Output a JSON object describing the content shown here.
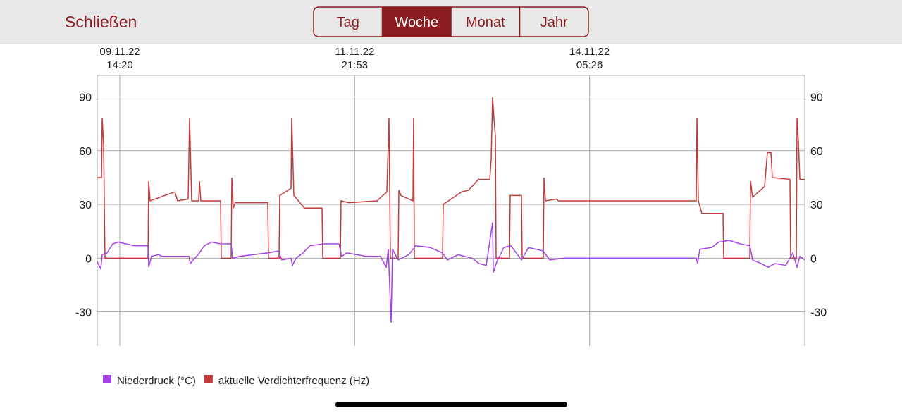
{
  "header": {
    "close": "Schließen",
    "tabs": [
      "Tag",
      "Woche",
      "Monat",
      "Jahr"
    ],
    "selected_tab": 1
  },
  "chart_data": {
    "type": "line",
    "xlim": [
      "2022-11-09T09:00",
      "2022-11-16T08:20"
    ],
    "xticks": [
      {
        "value": "2022-11-09T14:20",
        "label": [
          "09.11.22",
          "14:20"
        ]
      },
      {
        "value": "2022-11-11T21:53",
        "label": [
          "11.11.22",
          "21:53"
        ]
      },
      {
        "value": "2022-11-14T05:26",
        "label": [
          "14.11.22",
          "05:26"
        ]
      }
    ],
    "ylim": [
      -49,
      102
    ],
    "yticks": [
      -30,
      0,
      30,
      60,
      90
    ],
    "grid": true,
    "series": [
      {
        "name": "Niederdruck (°C)",
        "color": "#a443e6",
        "x": [
          "2022-11-09T09:00",
          "2022-11-09T09:50",
          "2022-11-09T10:10",
          "2022-11-09T11:20",
          "2022-11-09T12:40",
          "2022-11-09T14:00",
          "2022-11-09T17:40",
          "2022-11-09T21:00",
          "2022-11-09T21:10",
          "2022-11-09T21:50",
          "2022-11-09T23:30",
          "2022-11-10T00:20",
          "2022-11-10T06:40",
          "2022-11-10T07:00",
          "2022-11-10T09:10",
          "2022-11-10T10:20",
          "2022-11-10T12:00",
          "2022-11-10T14:10",
          "2022-11-10T16:40",
          "2022-11-10T17:00",
          "2022-11-10T18:40",
          "2022-11-11T01:20",
          "2022-11-11T03:50",
          "2022-11-11T04:40",
          "2022-11-11T06:50",
          "2022-11-11T07:10",
          "2022-11-11T08:00",
          "2022-11-11T09:40",
          "2022-11-11T11:20",
          "2022-11-11T14:40",
          "2022-11-11T18:10",
          "2022-11-11T18:50",
          "2022-11-11T20:00",
          "2022-11-12T00:40",
          "2022-11-12T04:00",
          "2022-11-12T05:20",
          "2022-11-12T05:50",
          "2022-11-12T06:30",
          "2022-11-12T06:50",
          "2022-11-12T08:10",
          "2022-11-12T10:40",
          "2022-11-12T12:20",
          "2022-11-12T15:40",
          "2022-11-12T18:40",
          "2022-11-12T19:50",
          "2022-11-12T22:20",
          "2022-11-13T01:40",
          "2022-11-13T03:20",
          "2022-11-13T05:00",
          "2022-11-13T06:30",
          "2022-11-13T06:40",
          "2022-11-13T07:30",
          "2022-11-13T09:10",
          "2022-11-13T10:50",
          "2022-11-13T13:20",
          "2022-11-13T15:00",
          "2022-11-13T18:30",
          "2022-11-13T20:00",
          "2022-11-13T23:20",
          "2022-11-15T06:40",
          "2022-11-15T07:00",
          "2022-11-15T07:30",
          "2022-11-15T10:20",
          "2022-11-15T12:00",
          "2022-11-15T14:30",
          "2022-11-15T17:00",
          "2022-11-15T19:20",
          "2022-11-15T20:00",
          "2022-11-15T22:00",
          "2022-11-15T23:40",
          "2022-11-16T01:20",
          "2022-11-16T03:50",
          "2022-11-16T05:30",
          "2022-11-16T06:30",
          "2022-11-16T07:10",
          "2022-11-16T08:20"
        ],
        "values": [
          -2,
          -6,
          2,
          3,
          8,
          9,
          7,
          7,
          -5,
          1,
          2,
          1,
          1,
          -3,
          3,
          7,
          9,
          8,
          8,
          0,
          1,
          3,
          4,
          -1,
          0,
          -4,
          0,
          3,
          7,
          8,
          8,
          1,
          3,
          1,
          1,
          -5,
          5,
          -36,
          5,
          -1,
          2,
          7,
          6,
          3,
          -1,
          2,
          0,
          -3,
          -4,
          20,
          -8,
          -2,
          6,
          7,
          -1,
          6,
          4,
          -1,
          0,
          0,
          -3,
          5,
          6,
          9,
          10,
          8,
          7,
          -1,
          -3,
          -5,
          -3,
          -4,
          3,
          -5,
          1,
          -1
        ]
      },
      {
        "name": "aktuelle Verdichterfrequenz (Hz)",
        "color": "#c23b3d",
        "x": [
          "2022-11-09T09:00",
          "2022-11-09T10:00",
          "2022-11-09T10:10",
          "2022-11-09T10:30",
          "2022-11-09T10:50",
          "2022-11-09T21:00",
          "2022-11-09T21:10",
          "2022-11-09T21:30",
          "2022-11-10T03:20",
          "2022-11-10T04:00",
          "2022-11-10T06:30",
          "2022-11-10T06:50",
          "2022-11-10T07:20",
          "2022-11-10T09:00",
          "2022-11-10T09:10",
          "2022-11-10T09:30",
          "2022-11-10T14:10",
          "2022-11-10T14:20",
          "2022-11-10T16:40",
          "2022-11-10T16:50",
          "2022-11-10T17:10",
          "2022-11-10T17:40",
          "2022-11-11T01:20",
          "2022-11-11T01:30",
          "2022-11-11T04:00",
          "2022-11-11T04:10",
          "2022-11-11T06:50",
          "2022-11-11T07:00",
          "2022-11-11T07:30",
          "2022-11-11T10:00",
          "2022-11-11T14:10",
          "2022-11-11T14:20",
          "2022-11-11T18:30",
          "2022-11-11T18:40",
          "2022-11-11T20:30",
          "2022-11-12T03:10",
          "2022-11-12T05:30",
          "2022-11-12T06:00",
          "2022-11-12T06:20",
          "2022-11-12T08:10",
          "2022-11-12T08:20",
          "2022-11-12T08:50",
          "2022-11-12T11:40",
          "2022-11-12T11:50",
          "2022-11-12T12:00",
          "2022-11-12T18:40",
          "2022-11-12T18:50",
          "2022-11-12T23:10",
          "2022-11-13T00:50",
          "2022-11-13T03:10",
          "2022-11-13T05:50",
          "2022-11-13T06:10",
          "2022-11-13T06:30",
          "2022-11-13T06:50",
          "2022-11-13T07:10",
          "2022-11-13T07:20",
          "2022-11-13T10:30",
          "2022-11-13T10:40",
          "2022-11-13T13:20",
          "2022-11-13T13:30",
          "2022-11-13T18:30",
          "2022-11-13T18:40",
          "2022-11-13T19:00",
          "2022-11-13T21:40",
          "2022-11-13T22:00",
          "2022-11-15T06:40",
          "2022-11-15T06:50",
          "2022-11-15T07:10",
          "2022-11-15T08:00",
          "2022-11-15T13:00",
          "2022-11-15T13:10",
          "2022-11-15T19:20",
          "2022-11-15T19:30",
          "2022-11-15T20:00",
          "2022-11-15T22:50",
          "2022-11-15T23:30",
          "2022-11-16T00:20",
          "2022-11-16T00:40",
          "2022-11-16T04:50",
          "2022-11-16T05:00",
          "2022-11-16T06:20",
          "2022-11-16T06:30",
          "2022-11-16T06:50",
          "2022-11-16T07:10",
          "2022-11-16T08:20"
        ],
        "values": [
          45,
          45,
          78,
          63,
          0,
          0,
          43,
          32,
          37,
          32,
          33,
          78,
          32,
          32,
          43,
          32,
          32,
          0,
          0,
          45,
          28,
          31,
          31,
          0,
          0,
          35,
          39,
          78,
          35,
          28,
          28,
          0,
          0,
          32,
          31,
          32,
          37,
          78,
          0,
          0,
          38,
          35,
          32,
          78,
          0,
          0,
          30,
          37,
          38,
          44,
          44,
          55,
          90,
          78,
          68,
          0,
          0,
          35,
          35,
          0,
          0,
          45,
          32,
          33,
          32,
          32,
          78,
          32,
          25,
          25,
          0,
          0,
          43,
          34,
          40,
          59,
          59,
          45,
          44,
          0,
          0,
          78,
          65,
          44,
          44
        ]
      }
    ]
  }
}
